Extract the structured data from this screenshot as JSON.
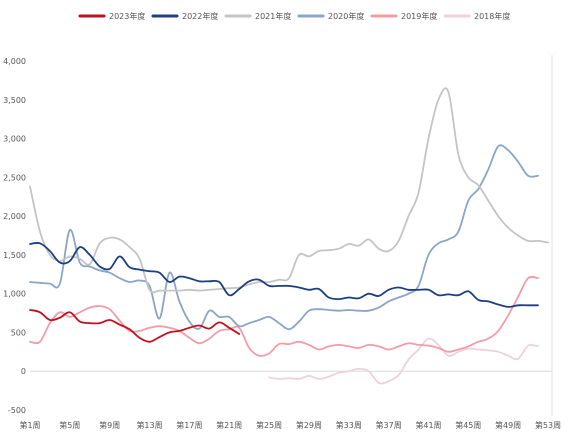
{
  "chart_data": {
    "type": "line",
    "ylim": [
      -500,
      4000
    ],
    "yticks": [
      -500,
      0,
      500,
      1000,
      1500,
      2000,
      2500,
      3000,
      3500,
      4000
    ],
    "ytick_labels": [
      "-500",
      "0",
      "500",
      "1,000",
      "1,500",
      "2,000",
      "2,500",
      "3,000",
      "3,500",
      "4,000"
    ],
    "xlim": [
      1,
      53
    ],
    "xticks": [
      1,
      5,
      9,
      13,
      17,
      21,
      25,
      29,
      33,
      37,
      41,
      45,
      49,
      53
    ],
    "xtick_labels": [
      "第1周",
      "第5周",
      "第9周",
      "第13周",
      "第17周",
      "第21周",
      "第25周",
      "第29周",
      "第33周",
      "第37周",
      "第41周",
      "第45周",
      "第49周",
      "第53周"
    ],
    "grid": false,
    "legend_position": "top",
    "series": [
      {
        "name": "2018年度",
        "color": "#efd2d9",
        "x": [
          25,
          26,
          27,
          28,
          29,
          30,
          31,
          32,
          33,
          34,
          35,
          36,
          37,
          38,
          39,
          40,
          41,
          42,
          43,
          44,
          45,
          46,
          47,
          48,
          49,
          50,
          51,
          52
        ],
        "y": [
          -80,
          -100,
          -90,
          -100,
          -60,
          -100,
          -70,
          -20,
          0,
          30,
          0,
          -150,
          -130,
          -50,
          150,
          280,
          420,
          340,
          200,
          250,
          290,
          280,
          270,
          250,
          200,
          160,
          330,
          320
        ]
      },
      {
        "name": "2019年度",
        "color": "#f29ca8",
        "x": [
          1,
          2,
          3,
          4,
          5,
          6,
          7,
          8,
          9,
          10,
          11,
          12,
          13,
          14,
          15,
          16,
          17,
          18,
          19,
          20,
          21,
          22,
          23,
          24,
          25,
          26,
          27,
          28,
          29,
          30,
          31,
          32,
          33,
          34,
          35,
          36,
          37,
          38,
          39,
          40,
          41,
          42,
          43,
          44,
          45,
          46,
          47,
          48,
          49,
          50,
          51,
          52
        ],
        "y": [
          380,
          380,
          620,
          760,
          700,
          760,
          820,
          840,
          800,
          650,
          520,
          520,
          560,
          580,
          560,
          520,
          430,
          360,
          420,
          520,
          540,
          560,
          300,
          200,
          230,
          350,
          350,
          380,
          340,
          280,
          320,
          340,
          320,
          300,
          340,
          320,
          280,
          320,
          360,
          340,
          330,
          300,
          250,
          280,
          320,
          380,
          420,
          520,
          720,
          960,
          1200,
          1200
        ]
      },
      {
        "name": "2020年度",
        "color": "#8aa5c8",
        "x": [
          1,
          2,
          3,
          4,
          5,
          6,
          7,
          8,
          9,
          10,
          11,
          12,
          13,
          14,
          15,
          16,
          17,
          18,
          19,
          20,
          21,
          22,
          23,
          24,
          25,
          26,
          27,
          28,
          29,
          30,
          31,
          32,
          33,
          34,
          35,
          36,
          37,
          38,
          39,
          40,
          41,
          42,
          43,
          44,
          45,
          46,
          47,
          48,
          49,
          50,
          51,
          52
        ],
        "y": [
          1150,
          1140,
          1130,
          1130,
          1820,
          1400,
          1350,
          1300,
          1270,
          1200,
          1150,
          1170,
          1100,
          680,
          1270,
          900,
          640,
          550,
          780,
          700,
          700,
          580,
          620,
          660,
          700,
          620,
          540,
          640,
          780,
          800,
          790,
          780,
          790,
          780,
          780,
          820,
          900,
          950,
          1000,
          1100,
          1500,
          1650,
          1700,
          1800,
          2200,
          2350,
          2600,
          2900,
          2850,
          2700,
          2520,
          2520
        ]
      },
      {
        "name": "2021年度",
        "color": "#c4c4c4",
        "x": [
          1,
          2,
          3,
          4,
          5,
          6,
          7,
          8,
          9,
          10,
          11,
          12,
          13,
          14,
          15,
          16,
          17,
          18,
          19,
          20,
          21,
          22,
          23,
          24,
          25,
          26,
          27,
          28,
          29,
          30,
          31,
          32,
          33,
          34,
          35,
          36,
          37,
          38,
          39,
          40,
          41,
          42,
          43,
          44,
          45,
          46,
          47,
          48,
          49,
          50,
          51,
          52,
          53
        ],
        "y": [
          2380,
          1800,
          1500,
          1420,
          1480,
          1450,
          1380,
          1650,
          1720,
          1700,
          1600,
          1450,
          1050,
          1040,
          1040,
          1040,
          1050,
          1040,
          1050,
          1060,
          1070,
          1080,
          1120,
          1150,
          1150,
          1180,
          1200,
          1500,
          1480,
          1550,
          1560,
          1580,
          1640,
          1620,
          1700,
          1580,
          1550,
          1680,
          2000,
          2300,
          3000,
          3500,
          3600,
          2800,
          2500,
          2400,
          2200,
          2000,
          1850,
          1750,
          1680,
          1680,
          1660
        ]
      },
      {
        "name": "2022年度",
        "color": "#1c3f80",
        "x": [
          1,
          2,
          3,
          4,
          5,
          6,
          7,
          8,
          9,
          10,
          11,
          12,
          13,
          14,
          15,
          16,
          17,
          18,
          19,
          20,
          21,
          22,
          23,
          24,
          25,
          26,
          27,
          28,
          29,
          30,
          31,
          32,
          33,
          34,
          35,
          36,
          37,
          38,
          39,
          40,
          41,
          42,
          43,
          44,
          45,
          46,
          47,
          48,
          49,
          50,
          51,
          52
        ],
        "y": [
          1640,
          1650,
          1550,
          1400,
          1420,
          1600,
          1500,
          1350,
          1320,
          1480,
          1340,
          1310,
          1290,
          1270,
          1150,
          1220,
          1200,
          1160,
          1160,
          1150,
          980,
          1060,
          1160,
          1180,
          1100,
          1100,
          1100,
          1080,
          1050,
          1060,
          950,
          930,
          950,
          940,
          1000,
          970,
          1050,
          1080,
          1050,
          1050,
          1050,
          980,
          990,
          980,
          1030,
          920,
          900,
          860,
          830,
          850,
          850,
          850
        ]
      },
      {
        "name": "2023年度",
        "color": "#c0111f",
        "x": [
          1,
          2,
          3,
          4,
          5,
          6,
          7,
          8,
          9,
          10,
          11,
          12,
          13,
          14,
          15,
          16,
          17,
          18,
          19,
          20,
          21,
          22
        ],
        "y": [
          790,
          760,
          660,
          690,
          760,
          640,
          620,
          620,
          660,
          600,
          540,
          430,
          380,
          440,
          500,
          520,
          560,
          590,
          550,
          630,
          560,
          480
        ]
      }
    ]
  }
}
